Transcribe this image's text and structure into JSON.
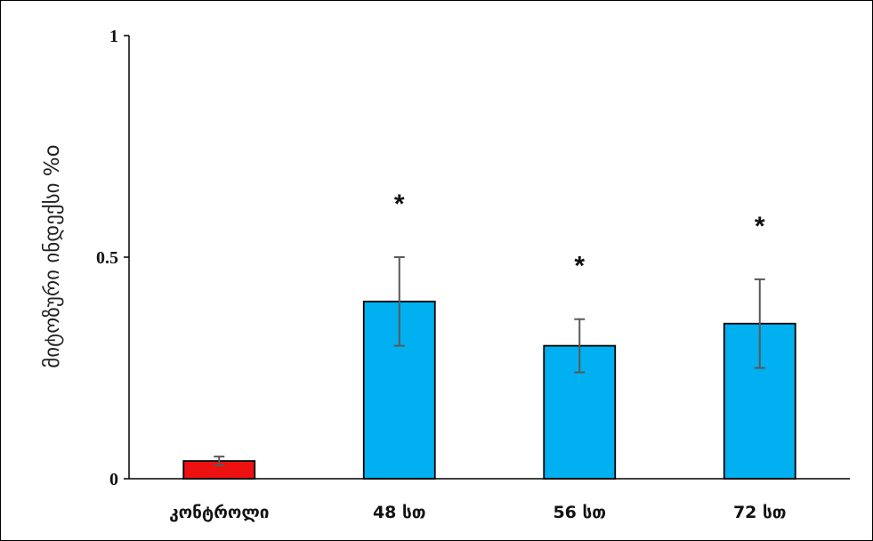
{
  "chart_data": {
    "type": "bar",
    "title": "",
    "xlabel": "",
    "ylabel": "მიტოზური ინდექსი %o",
    "ylim": [
      0,
      1
    ],
    "yticks": [
      {
        "value": 0,
        "label": "0"
      },
      {
        "value": 0.5,
        "label": "0.5"
      },
      {
        "value": 1,
        "label": "1"
      }
    ],
    "categories": [
      "კონტროლი",
      "48 სთ",
      "56 სთ",
      "72 სთ"
    ],
    "values": [
      0.04,
      0.4,
      0.3,
      0.35
    ],
    "errors": [
      0.01,
      0.1,
      0.06,
      0.1
    ],
    "significance": [
      "",
      "*",
      "*",
      "*"
    ],
    "colors": [
      "#ee1111",
      "#00b0f0",
      "#00b0f0",
      "#00b0f0"
    ],
    "bar_outline": "#000000",
    "error_bar_color": "#595959",
    "grid": false,
    "legend": "none"
  }
}
